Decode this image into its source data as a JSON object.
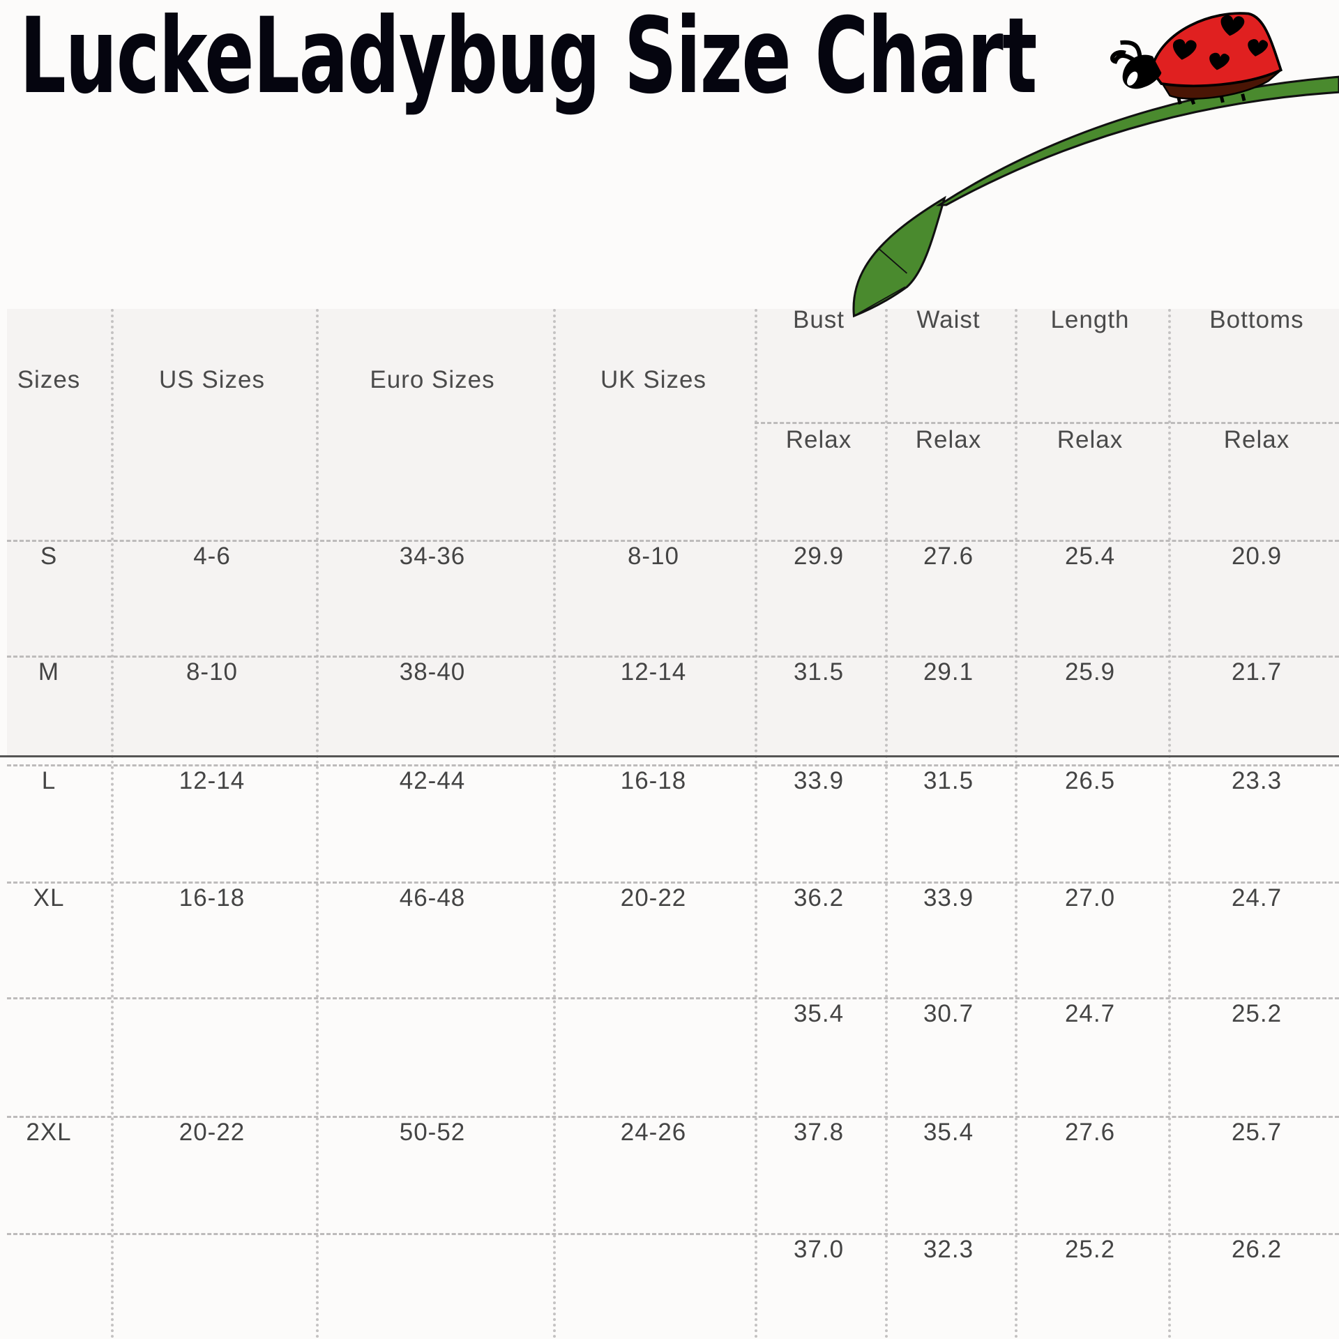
{
  "title": "LuckeLadybug Size Chart",
  "colors": {
    "ladybug_red": "#e02020",
    "leaf_green": "#4a8a2e",
    "title": "#05050f",
    "text": "#444444"
  },
  "table": {
    "headers": [
      "Sizes",
      "US Sizes",
      "Euro Sizes",
      "UK Sizes"
    ],
    "measure_headers": [
      "Bust",
      "Waist",
      "Length",
      "Bottoms"
    ],
    "sub_headers": [
      "Relax",
      "Relax",
      "Relax",
      "Relax"
    ],
    "rows": [
      [
        "S",
        "4-6",
        "34-36",
        "8-10",
        "29.9",
        "27.6",
        "25.4",
        "20.9"
      ],
      [
        "M",
        "8-10",
        "38-40",
        "12-14",
        "31.5",
        "29.1",
        "25.9",
        "21.7"
      ],
      [
        "L",
        "12-14",
        "42-44",
        "16-18",
        "33.9",
        "31.5",
        "26.5",
        "23.3"
      ],
      [
        "XL",
        "16-18",
        "46-48",
        "20-22",
        "36.2",
        "33.9",
        "27.0",
        "24.7"
      ],
      [
        "",
        "",
        "",
        "",
        "35.4",
        "30.7",
        "24.7",
        "25.2"
      ],
      [
        "2XL",
        "20-22",
        "50-52",
        "24-26",
        "37.8",
        "35.4",
        "27.6",
        "25.7"
      ],
      [
        "",
        "",
        "",
        "",
        "37.0",
        "32.3",
        "25.2",
        "26.2"
      ]
    ]
  }
}
